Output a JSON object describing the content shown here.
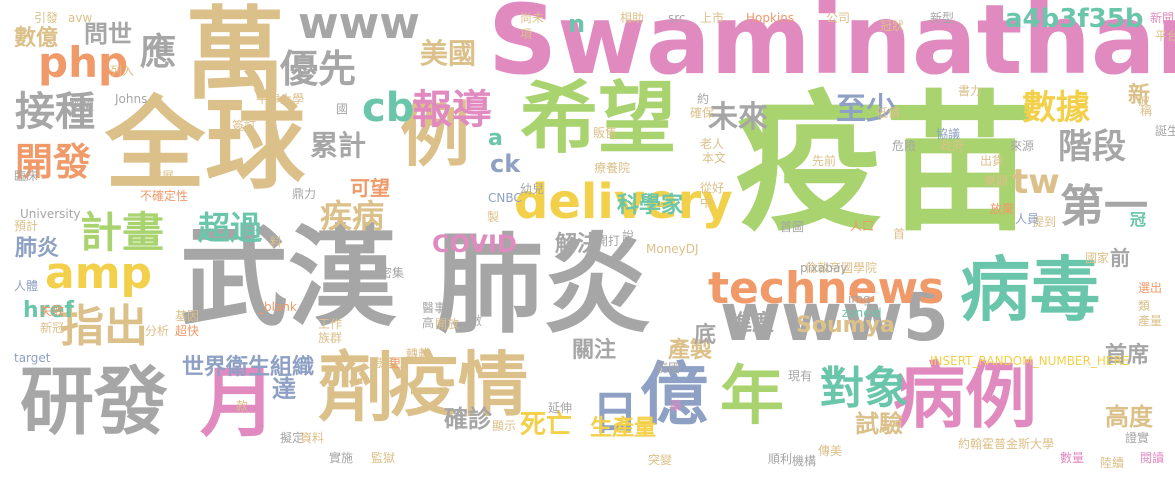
{
  "palette": {
    "tan": "#dcc08a",
    "pink": "#e08ac0",
    "green": "#a8d36e",
    "gray": "#a6a6a6",
    "orange": "#f09a6a",
    "yellow": "#f2d04a",
    "teal": "#6ac6aa",
    "slate": "#8ea0c4"
  },
  "words": [
    {
      "text": "疫苗",
      "color": "green"
    },
    {
      "text": "Swaminathan",
      "color": "pink"
    },
    {
      "text": "武漢",
      "color": "gray"
    },
    {
      "text": "肺炎",
      "color": "gray"
    },
    {
      "text": "全球",
      "color": "tan"
    },
    {
      "text": "萬",
      "color": "tan"
    },
    {
      "text": "希望",
      "color": "green"
    },
    {
      "text": "劑",
      "color": "tan"
    },
    {
      "text": "疫情",
      "color": "tan"
    },
    {
      "text": "病毒",
      "color": "teal"
    },
    {
      "text": "病例",
      "color": "pink"
    },
    {
      "text": "研發",
      "color": "gray"
    },
    {
      "text": "月",
      "color": "pink"
    },
    {
      "text": "例",
      "color": "tan"
    },
    {
      "text": "億",
      "color": "slate"
    },
    {
      "text": "年",
      "color": "green"
    },
    {
      "text": "www5",
      "color": "gray"
    },
    {
      "text": "technews",
      "color": "orange"
    },
    {
      "text": "delivery",
      "color": "yellow"
    },
    {
      "text": "amp",
      "color": "yellow"
    },
    {
      "text": "php",
      "color": "orange"
    },
    {
      "text": "www",
      "color": "gray"
    },
    {
      "text": "cb",
      "color": "teal"
    },
    {
      "text": "報導",
      "color": "pink"
    },
    {
      "text": "日",
      "color": "slate"
    },
    {
      "text": "對象",
      "color": "teal"
    },
    {
      "text": "第一",
      "color": "gray"
    },
    {
      "text": "計畫",
      "color": "green"
    },
    {
      "text": "指出",
      "color": "tan"
    },
    {
      "text": "接種",
      "color": "gray"
    },
    {
      "text": "開發",
      "color": "orange"
    },
    {
      "text": "應",
      "color": "gray"
    },
    {
      "text": "優先",
      "color": "gray"
    },
    {
      "text": "數據",
      "color": "yellow"
    },
    {
      "text": "階段",
      "color": "gray"
    },
    {
      "text": "未來",
      "color": "gray"
    },
    {
      "text": "至少",
      "color": "slate"
    },
    {
      "text": "tw",
      "color": "tan"
    },
    {
      "text": "疾病",
      "color": "tan"
    },
    {
      "text": "超過",
      "color": "teal"
    },
    {
      "text": "累計",
      "color": "gray"
    },
    {
      "text": "美國",
      "color": "tan"
    },
    {
      "text": "a4b3f35b",
      "color": "teal"
    },
    {
      "text": "問世",
      "color": "gray"
    },
    {
      "text": "數億",
      "color": "tan"
    },
    {
      "text": "COVID",
      "color": "pink"
    },
    {
      "text": "解決",
      "color": "gray"
    },
    {
      "text": "科學家",
      "color": "teal"
    },
    {
      "text": "可望",
      "color": "orange"
    },
    {
      "text": "肺炎",
      "color": "slate"
    },
    {
      "text": "ck",
      "color": "slate"
    },
    {
      "text": "Soumya",
      "color": "tan"
    },
    {
      "text": "進度",
      "color": "gray"
    },
    {
      "text": "關注",
      "color": "gray"
    },
    {
      "text": "產製",
      "color": "tan"
    },
    {
      "text": "世界衛生組織",
      "color": "slate"
    },
    {
      "text": "達",
      "color": "slate"
    },
    {
      "text": "確診",
      "color": "gray"
    },
    {
      "text": "死亡",
      "color": "yellow"
    },
    {
      "text": "生產量",
      "color": "yellow"
    },
    {
      "text": "試驗",
      "color": "tan"
    },
    {
      "text": "首席",
      "color": "gray"
    },
    {
      "text": "高度",
      "color": "tan"
    },
    {
      "text": "n",
      "color": "teal"
    },
    {
      "text": "a",
      "color": "teal"
    },
    {
      "text": "href",
      "color": "teal"
    },
    {
      "text": "底",
      "color": "gray"
    },
    {
      "text": "前",
      "color": "gray"
    },
    {
      "text": "冠",
      "color": "teal"
    },
    {
      "text": "新",
      "color": "tan"
    },
    {
      "text": "倫敦帝國學院",
      "color": "tan"
    },
    {
      "text": "約翰霍普金斯大學",
      "color": "tan"
    },
    {
      "text": "INSERT_RANDOM_NUMBER_HERE",
      "color": "yellow"
    },
    {
      "text": "MoneyDJ",
      "color": "tan"
    },
    {
      "text": "Hopkins",
      "color": "orange"
    },
    {
      "text": "Johns",
      "color": "gray"
    },
    {
      "text": "University",
      "color": "gray"
    },
    {
      "text": "pixabay",
      "color": "gray"
    },
    {
      "text": "zoneid",
      "color": "teal"
    },
    {
      "text": "target",
      "color": "slate"
    },
    {
      "text": "_blank",
      "color": "orange"
    },
    {
      "text": "CNBC",
      "color": "slate"
    },
    {
      "text": "src",
      "color": "gray"
    },
    {
      "text": "img",
      "color": "gray"
    },
    {
      "text": "avw",
      "color": "tan"
    },
    {
      "text": "引發",
      "color": "tan"
    },
    {
      "text": "上市",
      "color": "tan"
    },
    {
      "text": "相助",
      "color": "tan"
    },
    {
      "text": "公司",
      "color": "tan"
    },
    {
      "text": "冠狀",
      "color": "tan"
    },
    {
      "text": "新型",
      "color": "gray"
    },
    {
      "text": "新聞",
      "color": "pink"
    },
    {
      "text": "平台",
      "color": "tan"
    },
    {
      "text": "牛津大學",
      "color": "tan"
    },
    {
      "text": "臨床",
      "color": "gray"
    },
    {
      "text": "預計",
      "color": "tan"
    },
    {
      "text": "人體",
      "color": "slate"
    },
    {
      "text": "失敗",
      "color": "orange"
    },
    {
      "text": "新冠",
      "color": "tan"
    },
    {
      "text": "不確定性",
      "color": "orange"
    },
    {
      "text": "超快",
      "color": "orange"
    },
    {
      "text": "基因",
      "color": "tan"
    },
    {
      "text": "分析",
      "color": "tan"
    },
    {
      "text": "工作",
      "color": "tan"
    },
    {
      "text": "族群",
      "color": "tan"
    },
    {
      "text": "開放",
      "color": "tan"
    },
    {
      "text": "醫事",
      "color": "gray"
    },
    {
      "text": "患者",
      "color": "tan"
    },
    {
      "text": "轉載",
      "color": "tan"
    },
    {
      "text": "更",
      "color": "orange"
    },
    {
      "text": "顯示",
      "color": "tan"
    },
    {
      "text": "延伸",
      "color": "gray"
    },
    {
      "text": "突變",
      "color": "tan"
    },
    {
      "text": "順利",
      "color": "gray"
    },
    {
      "text": "機構",
      "color": "gray"
    },
    {
      "text": "傳美",
      "color": "tan"
    },
    {
      "text": "數量",
      "color": "pink"
    },
    {
      "text": "陸續",
      "color": "tan"
    },
    {
      "text": "閱讀",
      "color": "pink"
    },
    {
      "text": "證實",
      "color": "gray"
    },
    {
      "text": "現有",
      "color": "gray"
    },
    {
      "text": "窮國",
      "color": "gray"
    },
    {
      "text": "藥",
      "color": "pink"
    },
    {
      "text": "提到",
      "color": "tan"
    },
    {
      "text": "國家",
      "color": "tan"
    },
    {
      "text": "人員",
      "color": "slate"
    },
    {
      "text": "放棄",
      "color": "orange"
    },
    {
      "text": "樂觀",
      "color": "tan"
    },
    {
      "text": "出貨",
      "color": "tan"
    },
    {
      "text": "政府",
      "color": "tan"
    },
    {
      "text": "危險",
      "color": "gray"
    },
    {
      "text": "先前",
      "color": "tan"
    },
    {
      "text": "本文",
      "color": "tan"
    },
    {
      "text": "老人",
      "color": "tan"
    },
    {
      "text": "療養院",
      "color": "tan"
    },
    {
      "text": "鼎力",
      "color": "gray"
    },
    {
      "text": "幼兒",
      "color": "gray"
    },
    {
      "text": "從好",
      "color": "tan"
    },
    {
      "text": "人口",
      "color": "orange"
    },
    {
      "text": "首圖",
      "color": "gray"
    },
    {
      "text": "開打",
      "color": "gray"
    },
    {
      "text": "說",
      "color": "gray"
    },
    {
      "text": "製",
      "color": "tan"
    },
    {
      "text": "確保",
      "color": "tan"
    },
    {
      "text": "販售",
      "color": "tan"
    },
    {
      "text": "約",
      "color": "gray"
    },
    {
      "text": "低價",
      "color": "tan"
    },
    {
      "text": "協議",
      "color": "slate"
    },
    {
      "text": "書力",
      "color": "tan"
    },
    {
      "text": "誕生",
      "color": "gray"
    },
    {
      "text": "來源",
      "color": "gray"
    },
    {
      "text": "稱",
      "color": "tan"
    },
    {
      "text": "尚未",
      "color": "tan"
    },
    {
      "text": "項",
      "color": "tan"
    },
    {
      "text": "授權",
      "color": "gray"
    },
    {
      "text": "列入",
      "color": "tan"
    },
    {
      "text": "簽訂",
      "color": "tan"
    },
    {
      "text": "進展",
      "color": "tan"
    },
    {
      "text": "密集",
      "color": "gray"
    },
    {
      "text": "高",
      "color": "gray"
    },
    {
      "text": "數",
      "color": "gray"
    },
    {
      "text": "擬定",
      "color": "gray"
    },
    {
      "text": "資料",
      "color": "tan"
    },
    {
      "text": "實施",
      "color": "gray"
    },
    {
      "text": "監獄",
      "color": "tan"
    },
    {
      "text": "款",
      "color": "tan"
    },
    {
      "text": "選出",
      "color": "orange"
    },
    {
      "text": "產量",
      "color": "tan"
    },
    {
      "text": "類",
      "color": "tan"
    },
    {
      "text": "波",
      "color": "tan"
    },
    {
      "text": "料",
      "color": "tan"
    },
    {
      "text": "首",
      "color": "tan"
    },
    {
      "text": "中",
      "color": "tan"
    },
    {
      "text": "國",
      "color": "gray"
    }
  ]
}
